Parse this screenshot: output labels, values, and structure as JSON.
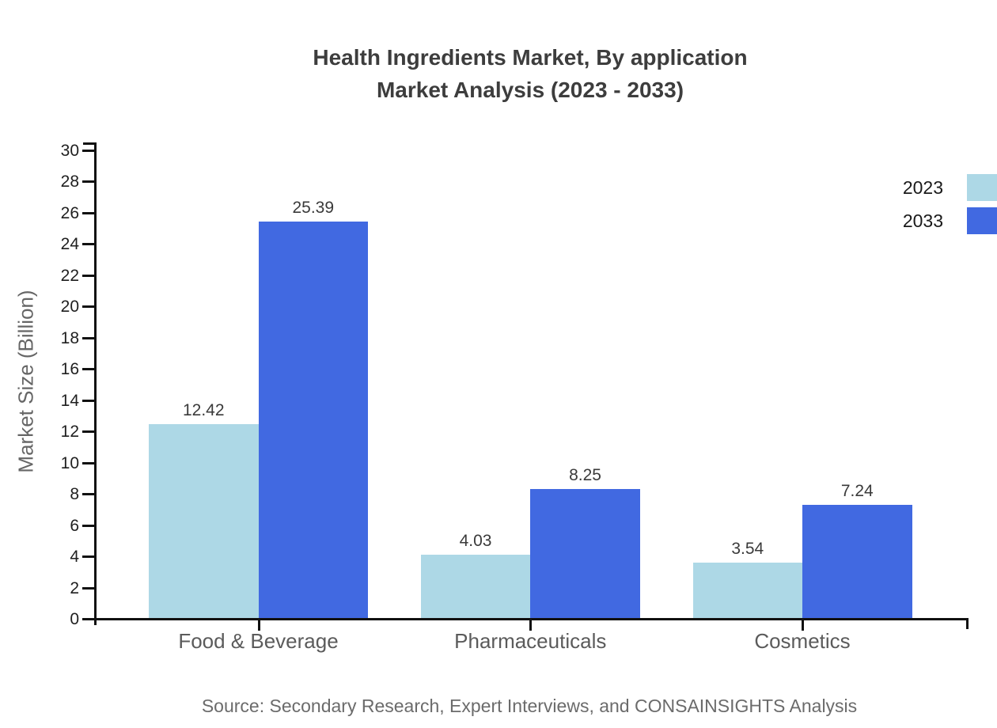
{
  "title": {
    "line1": "Health Ingredients Market, By application",
    "line2": "Market Analysis (2023 - 2033)"
  },
  "source": "Source: Secondary Research, Expert Interviews, and CONSAINSIGHTS Analysis",
  "colors": {
    "series_2023": "#ADD8E6",
    "series_2033": "#4169E1",
    "axis": "#111111",
    "title_text": "#3d3d3d",
    "muted_text": "#666666"
  },
  "chart_data": {
    "type": "bar",
    "title": "Health Ingredients Market, By application Market Analysis (2023 - 2033)",
    "categories": [
      "Food & Beverage",
      "Pharmaceuticals",
      "Cosmetics"
    ],
    "series": [
      {
        "name": "2023",
        "color": "#ADD8E6",
        "values": [
          12.42,
          4.03,
          3.54
        ]
      },
      {
        "name": "2033",
        "color": "#4169E1",
        "values": [
          25.39,
          8.25,
          7.24
        ]
      }
    ],
    "value_labels": [
      "12.42",
      "25.39",
      "4.03",
      "8.25",
      "3.54",
      "7.24"
    ],
    "xlabel": "",
    "ylabel": "Market Size (Billion)",
    "ylim": [
      0,
      30
    ],
    "ytick_step": 2,
    "yticks": [
      0,
      2,
      4,
      6,
      8,
      10,
      12,
      14,
      16,
      18,
      20,
      22,
      24,
      26,
      28,
      30
    ],
    "grid": false,
    "legend_position": "top-right"
  }
}
